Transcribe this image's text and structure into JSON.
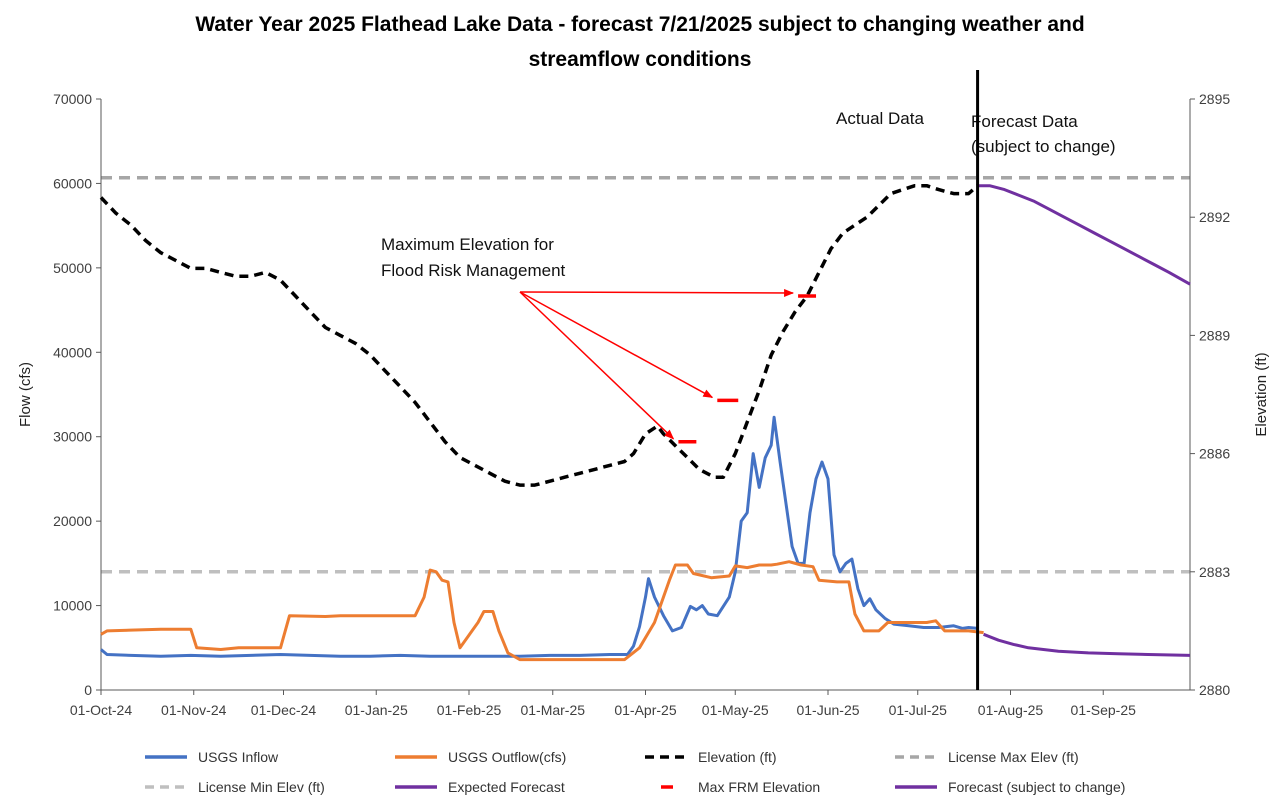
{
  "chart_data": {
    "type": "line",
    "title_lines": [
      "Water Year 2025 Flathead Lake Data - forecast 7/21/2025 subject to changing weather and",
      "streamflow conditions"
    ],
    "ylabel": "Flow (cfs)",
    "y2label": "Elevation (ft)",
    "ylim": [
      0,
      70000
    ],
    "y2lim": [
      2880,
      2895
    ],
    "xlim": [
      0,
      364
    ],
    "y_ticks": [
      "0",
      "10000",
      "20000",
      "30000",
      "40000",
      "50000",
      "60000",
      "70000"
    ],
    "y2_ticks": [
      "2880",
      "2883",
      "2886",
      "2889",
      "2892",
      "2895"
    ],
    "x_ticks": [
      {
        "day": 0,
        "label": "01-Oct-24"
      },
      {
        "day": 31,
        "label": "01-Nov-24"
      },
      {
        "day": 61,
        "label": "01-Dec-24"
      },
      {
        "day": 92,
        "label": "01-Jan-25"
      },
      {
        "day": 123,
        "label": "01-Feb-25"
      },
      {
        "day": 151,
        "label": "01-Mar-25"
      },
      {
        "day": 182,
        "label": "01-Apr-25"
      },
      {
        "day": 212,
        "label": "01-May-25"
      },
      {
        "day": 243,
        "label": "01-Jun-25"
      },
      {
        "day": 273,
        "label": "01-Jul-25"
      },
      {
        "day": 304,
        "label": "01-Aug-25"
      },
      {
        "day": 335,
        "label": "01-Sep-25"
      }
    ],
    "forecast_divider_day": 293,
    "license_max_elev": 2893,
    "license_min_elev": 2883,
    "series": [
      {
        "name": "USGS Inflow",
        "color": "#4472c4",
        "axis": "left",
        "style": "solid",
        "points": [
          [
            0,
            4800
          ],
          [
            2,
            4200
          ],
          [
            10,
            4100
          ],
          [
            20,
            4000
          ],
          [
            30,
            4100
          ],
          [
            40,
            4000
          ],
          [
            50,
            4100
          ],
          [
            60,
            4200
          ],
          [
            70,
            4100
          ],
          [
            80,
            4000
          ],
          [
            90,
            4000
          ],
          [
            100,
            4100
          ],
          [
            110,
            4000
          ],
          [
            120,
            4000
          ],
          [
            130,
            4000
          ],
          [
            140,
            4000
          ],
          [
            150,
            4100
          ],
          [
            160,
            4100
          ],
          [
            170,
            4200
          ],
          [
            176,
            4200
          ],
          [
            178,
            5200
          ],
          [
            180,
            7500
          ],
          [
            182,
            11000
          ],
          [
            183,
            13200
          ],
          [
            185,
            11000
          ],
          [
            188,
            8800
          ],
          [
            191,
            7000
          ],
          [
            194,
            7400
          ],
          [
            197,
            9900
          ],
          [
            199,
            9500
          ],
          [
            201,
            10000
          ],
          [
            203,
            9000
          ],
          [
            206,
            8800
          ],
          [
            210,
            11000
          ],
          [
            212,
            14000
          ],
          [
            214,
            20000
          ],
          [
            216,
            21000
          ],
          [
            218,
            28000
          ],
          [
            220,
            24000
          ],
          [
            222,
            27500
          ],
          [
            224,
            29000
          ],
          [
            225,
            32300
          ],
          [
            227,
            27000
          ],
          [
            229,
            22000
          ],
          [
            231,
            17000
          ],
          [
            233,
            15000
          ],
          [
            235,
            15000
          ],
          [
            237,
            21000
          ],
          [
            239,
            25000
          ],
          [
            241,
            27000
          ],
          [
            243,
            25000
          ],
          [
            245,
            16000
          ],
          [
            247,
            14000
          ],
          [
            249,
            15000
          ],
          [
            251,
            15500
          ],
          [
            253,
            12000
          ],
          [
            255,
            10000
          ],
          [
            257,
            10800
          ],
          [
            259,
            9500
          ],
          [
            262,
            8500
          ],
          [
            265,
            7800
          ],
          [
            270,
            7600
          ],
          [
            275,
            7400
          ],
          [
            280,
            7400
          ],
          [
            285,
            7600
          ],
          [
            288,
            7300
          ],
          [
            290,
            7400
          ],
          [
            293,
            7300
          ]
        ]
      },
      {
        "name": "USGS Outflow(cfs)",
        "color": "#ed7d31",
        "axis": "left",
        "style": "solid",
        "points": [
          [
            0,
            6600
          ],
          [
            2,
            7000
          ],
          [
            10,
            7100
          ],
          [
            20,
            7200
          ],
          [
            30,
            7200
          ],
          [
            32,
            5000
          ],
          [
            40,
            4800
          ],
          [
            46,
            5000
          ],
          [
            60,
            5000
          ],
          [
            63,
            8800
          ],
          [
            75,
            8700
          ],
          [
            80,
            8800
          ],
          [
            90,
            8800
          ],
          [
            105,
            8800
          ],
          [
            108,
            11000
          ],
          [
            110,
            14200
          ],
          [
            112,
            14000
          ],
          [
            114,
            13000
          ],
          [
            116,
            12800
          ],
          [
            118,
            8000
          ],
          [
            120,
            5000
          ],
          [
            124,
            7000
          ],
          [
            126,
            8000
          ],
          [
            128,
            9300
          ],
          [
            131,
            9300
          ],
          [
            133,
            7000
          ],
          [
            136,
            4400
          ],
          [
            140,
            3600
          ],
          [
            150,
            3600
          ],
          [
            160,
            3600
          ],
          [
            170,
            3600
          ],
          [
            175,
            3600
          ],
          [
            180,
            5000
          ],
          [
            185,
            8000
          ],
          [
            190,
            13000
          ],
          [
            192,
            14800
          ],
          [
            196,
            14800
          ],
          [
            198,
            13800
          ],
          [
            204,
            13300
          ],
          [
            210,
            13500
          ],
          [
            212,
            14700
          ],
          [
            216,
            14500
          ],
          [
            220,
            14800
          ],
          [
            224,
            14800
          ],
          [
            226,
            14900
          ],
          [
            230,
            15200
          ],
          [
            234,
            14800
          ],
          [
            238,
            14600
          ],
          [
            240,
            13000
          ],
          [
            246,
            12800
          ],
          [
            250,
            12800
          ],
          [
            252,
            9000
          ],
          [
            255,
            7000
          ],
          [
            260,
            7000
          ],
          [
            263,
            8000
          ],
          [
            270,
            8000
          ],
          [
            276,
            8000
          ],
          [
            279,
            8200
          ],
          [
            282,
            7000
          ],
          [
            290,
            7000
          ],
          [
            295,
            6800
          ]
        ]
      },
      {
        "name": "Elevation (ft)",
        "color": "#000000",
        "axis": "right",
        "style": "dashed",
        "points": [
          [
            0,
            2892.5
          ],
          [
            5,
            2892.1
          ],
          [
            10,
            2891.8
          ],
          [
            15,
            2891.4
          ],
          [
            20,
            2891.1
          ],
          [
            25,
            2890.9
          ],
          [
            30,
            2890.7
          ],
          [
            35,
            2890.7
          ],
          [
            40,
            2890.6
          ],
          [
            45,
            2890.5
          ],
          [
            50,
            2890.5
          ],
          [
            55,
            2890.6
          ],
          [
            60,
            2890.4
          ],
          [
            65,
            2890.0
          ],
          [
            70,
            2889.6
          ],
          [
            75,
            2889.2
          ],
          [
            80,
            2889.0
          ],
          [
            85,
            2888.8
          ],
          [
            90,
            2888.5
          ],
          [
            95,
            2888.1
          ],
          [
            100,
            2887.7
          ],
          [
            105,
            2887.3
          ],
          [
            110,
            2886.8
          ],
          [
            115,
            2886.3
          ],
          [
            120,
            2885.9
          ],
          [
            125,
            2885.7
          ],
          [
            130,
            2885.5
          ],
          [
            135,
            2885.3
          ],
          [
            140,
            2885.2
          ],
          [
            145,
            2885.2
          ],
          [
            150,
            2885.3
          ],
          [
            155,
            2885.4
          ],
          [
            160,
            2885.5
          ],
          [
            165,
            2885.6
          ],
          [
            170,
            2885.7
          ],
          [
            175,
            2885.8
          ],
          [
            178,
            2886.0
          ],
          [
            182,
            2886.5
          ],
          [
            186,
            2886.7
          ],
          [
            188,
            2886.5
          ],
          [
            192,
            2886.2
          ],
          [
            196,
            2885.9
          ],
          [
            200,
            2885.6
          ],
          [
            205,
            2885.4
          ],
          [
            208,
            2885.4
          ],
          [
            212,
            2886.0
          ],
          [
            216,
            2886.8
          ],
          [
            220,
            2887.6
          ],
          [
            224,
            2888.5
          ],
          [
            228,
            2889.1
          ],
          [
            232,
            2889.6
          ],
          [
            236,
            2890.0
          ],
          [
            240,
            2890.6
          ],
          [
            244,
            2891.2
          ],
          [
            248,
            2891.6
          ],
          [
            252,
            2891.8
          ],
          [
            256,
            2892.0
          ],
          [
            260,
            2892.3
          ],
          [
            264,
            2892.6
          ],
          [
            268,
            2892.7
          ],
          [
            272,
            2892.8
          ],
          [
            276,
            2892.8
          ],
          [
            280,
            2892.7
          ],
          [
            285,
            2892.6
          ],
          [
            290,
            2892.6
          ],
          [
            293,
            2892.8
          ]
        ]
      },
      {
        "name": "Expected Forecast",
        "color": "#7030a0",
        "axis": "left",
        "style": "solid",
        "points": [
          [
            295,
            6600
          ],
          [
            300,
            5900
          ],
          [
            305,
            5400
          ],
          [
            310,
            5000
          ],
          [
            315,
            4800
          ],
          [
            320,
            4600
          ],
          [
            330,
            4400
          ],
          [
            340,
            4300
          ],
          [
            350,
            4200
          ],
          [
            364,
            4100
          ]
        ]
      },
      {
        "name": "Forecast (subject to change)",
        "color": "#7030a0",
        "axis": "right",
        "style": "solid",
        "points": [
          [
            293,
            2892.8
          ],
          [
            297,
            2892.8
          ],
          [
            302,
            2892.7
          ],
          [
            307,
            2892.55
          ],
          [
            312,
            2892.4
          ],
          [
            317,
            2892.2
          ],
          [
            322,
            2892.0
          ],
          [
            327,
            2891.8
          ],
          [
            332,
            2891.6
          ],
          [
            337,
            2891.4
          ],
          [
            342,
            2891.2
          ],
          [
            347,
            2891.0
          ],
          [
            352,
            2890.8
          ],
          [
            357,
            2890.6
          ],
          [
            364,
            2890.3
          ]
        ]
      }
    ],
    "max_frm_elevation": [
      {
        "x0": 193,
        "x1": 199,
        "value": 2886.3
      },
      {
        "x0": 206,
        "x1": 213,
        "value": 2887.35
      },
      {
        "x0": 233,
        "x1": 239,
        "value": 2890.0
      }
    ],
    "annotations": {
      "actual_label": "Actual Data",
      "forecast_label_lines": [
        "Forecast Data",
        "(subject to change)"
      ],
      "frm_label_lines": [
        "Maximum Elevation for",
        "Flood Risk Management"
      ]
    },
    "legend": [
      {
        "label": "USGS Inflow",
        "color": "#4472c4",
        "style": "solid"
      },
      {
        "label": "USGS Outflow(cfs)",
        "color": "#ed7d31",
        "style": "solid"
      },
      {
        "label": "Elevation (ft)",
        "color": "#000000",
        "style": "dashed"
      },
      {
        "label": "License Max Elev (ft)",
        "color": "#a6a6a6",
        "style": "dashed"
      },
      {
        "label": "License Min Elev (ft)",
        "color": "#bfbfbf",
        "style": "dashed"
      },
      {
        "label": "Expected Forecast",
        "color": "#7030a0",
        "style": "solid"
      },
      {
        "label": "Max FRM Elevation",
        "color": "#ff0000",
        "style": "short"
      },
      {
        "label": "Forecast (subject to change)",
        "color": "#7030a0",
        "style": "solid"
      }
    ]
  }
}
